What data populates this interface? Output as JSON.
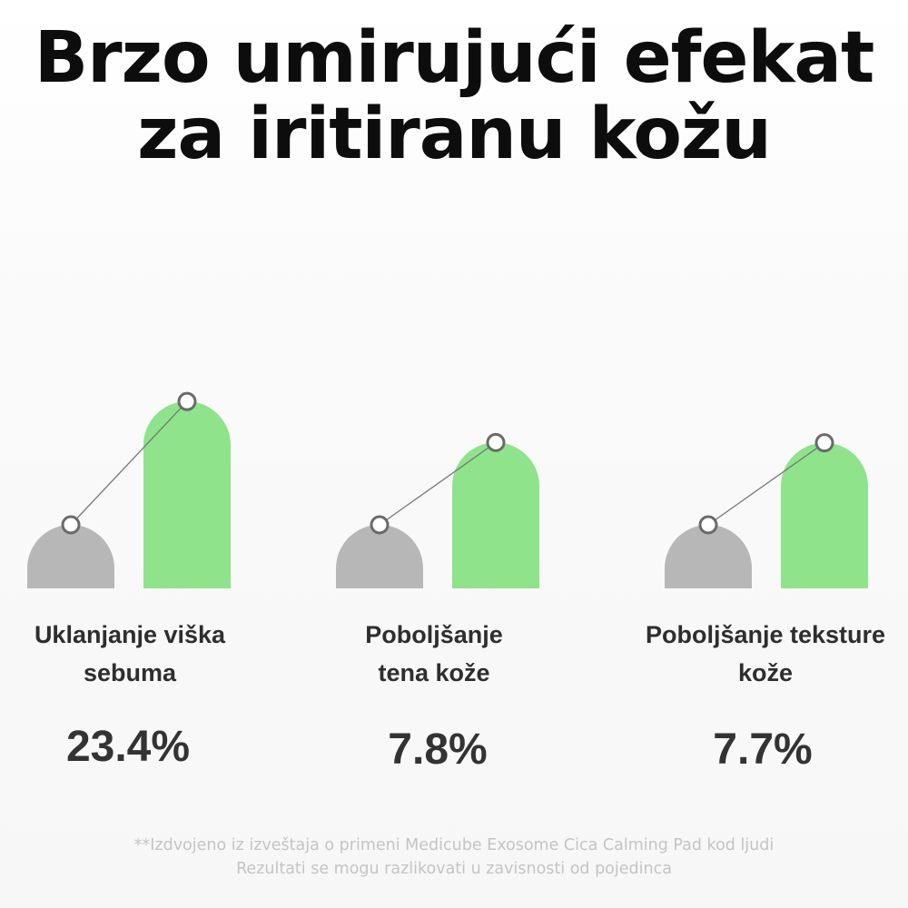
{
  "title": {
    "line1": "Brzo umirujući efekat",
    "line2": "za iritiranu kožu"
  },
  "colors": {
    "before_bar": "#b7b7b7",
    "after_bar": "#8ee38b",
    "connector": "#777777",
    "marker_stroke": "#6a6a6a",
    "marker_fill": "#ffffff"
  },
  "chart_data": {
    "type": "bar",
    "categories": [
      "Uklanjanje viška sebuma",
      "Poboljšanje tena kože",
      "Poboljšanje teksture kože"
    ],
    "series": [
      {
        "values": [
          1.0,
          1.0,
          1.0
        ]
      },
      {
        "values": [
          1.234,
          1.078,
          1.077
        ]
      }
    ],
    "improvement_percent": [
      23.4,
      7.8,
      7.7
    ],
    "ylim": [
      0,
      1.3
    ],
    "legend": "none",
    "grid": false
  },
  "groups": [
    {
      "label_line1": "Uklanjanje viška",
      "label_line2": "sebuma",
      "value": "23.4%"
    },
    {
      "label_line1": "Poboljšanje",
      "label_line2": "tena kože",
      "value": "7.8%"
    },
    {
      "label_line1": "Poboljšanje teksture",
      "label_line2": "kože",
      "value": "7.7%"
    }
  ],
  "footnote": {
    "line1": "**Izdvojeno iz izveštaja o primeni Medicube Exosome Cica Calming Pad kod ljudi",
    "line2": "Rezultati se mogu razlikovati u zavisnosti od pojedinca"
  }
}
